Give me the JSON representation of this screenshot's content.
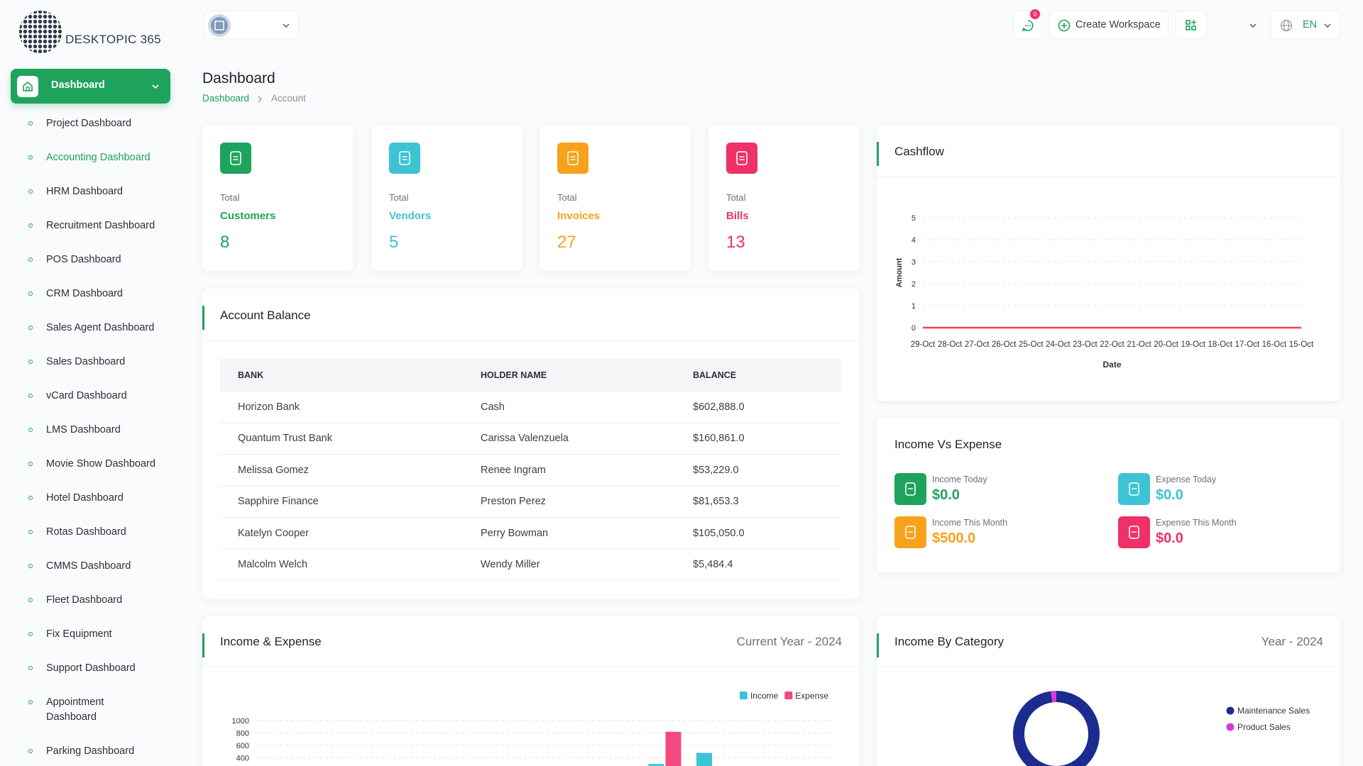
{
  "sidebar": {
    "logo": "DESKTOPIC 365",
    "active": "Dashboard",
    "items": [
      "Project Dashboard",
      "Accounting Dashboard",
      "HRM Dashboard",
      "Recruitment Dashboard",
      "POS Dashboard",
      "CRM Dashboard",
      "Sales Agent Dashboard",
      "Sales Dashboard",
      "vCard Dashboard",
      "LMS Dashboard",
      "Movie Show Dashboard",
      "Hotel Dashboard",
      "Rotas Dashboard",
      "CMMS Dashboard",
      "Fleet Dashboard",
      "Fix Equipment",
      "Support Dashboard",
      "Appointment Dashboard",
      "Parking Dashboard"
    ],
    "current_item": "Accounting Dashboard"
  },
  "header": {
    "notification_count": 0,
    "create_workspace": "Create Workspace",
    "language": "EN"
  },
  "page": {
    "title": "Dashboard",
    "breadcrumb": [
      "Dashboard",
      "Account"
    ]
  },
  "stats": [
    {
      "label": "Total",
      "name": "Customers",
      "value": 8,
      "color": "#1ea35c"
    },
    {
      "label": "Total",
      "name": "Vendors",
      "value": 5,
      "color": "#3ec3d5"
    },
    {
      "label": "Total",
      "name": "Invoices",
      "value": 27,
      "color": "#f7a21b"
    },
    {
      "label": "Total",
      "name": "Bills",
      "value": 13,
      "color": "#ef3167"
    }
  ],
  "account_balance": {
    "title": "Account Balance",
    "columns": [
      "BANK",
      "HOLDER NAME",
      "BALANCE"
    ],
    "rows": [
      [
        "Horizon Bank",
        "Cash",
        "$602,888.0"
      ],
      [
        "Quantum Trust Bank",
        "Carissa Valenzuela",
        "$160,861.0"
      ],
      [
        "Melissa Gomez",
        "Renee Ingram",
        "$53,229.0"
      ],
      [
        "Sapphire Finance",
        "Preston Perez",
        "$81,653.3"
      ],
      [
        "Katelyn Cooper",
        "Perry Bowman",
        "$105,050.0"
      ],
      [
        "Malcolm Welch",
        "Wendy Miller",
        "$5,484.4"
      ]
    ]
  },
  "income_vs_expense": {
    "title": "Income Vs Expense",
    "items": [
      {
        "label": "Income Today",
        "value": "$0.0",
        "color": "#1ea35c"
      },
      {
        "label": "Expense Today",
        "value": "$0.0",
        "color": "#3ec3d5"
      },
      {
        "label": "Income This Month",
        "value": "$500.0",
        "color": "#f7a21b"
      },
      {
        "label": "Expense This Month",
        "value": "$0.0",
        "color": "#ef3167"
      }
    ]
  },
  "chart_data": [
    {
      "type": "line",
      "title": "Cashflow",
      "x_label": "Date",
      "y_label": "Amount",
      "categories": [
        "29-Oct",
        "28-Oct",
        "27-Oct",
        "26-Oct",
        "25-Oct",
        "24-Oct",
        "23-Oct",
        "22-Oct",
        "21-Oct",
        "20-Oct",
        "19-Oct",
        "18-Oct",
        "17-Oct",
        "16-Oct",
        "15-Oct"
      ],
      "series": [
        {
          "color": "#ff3a5c",
          "values": [
            0,
            0,
            0,
            0,
            0,
            0,
            0,
            0,
            0,
            0,
            0,
            0,
            0,
            0,
            0
          ]
        }
      ],
      "ylim": [
        0,
        5
      ],
      "yticks": [
        0,
        1,
        2,
        3,
        4,
        5
      ],
      "grid": true
    },
    {
      "type": "bar",
      "title": "Income & Expense",
      "subtitle": "Current Year - 2024",
      "categories": [
        null,
        null,
        null,
        null,
        null,
        null,
        null,
        null,
        null,
        null,
        null,
        null
      ],
      "series": [
        {
          "name": "Income",
          "color": "#3ec3d5",
          "values": [
            0,
            0,
            0,
            0,
            0,
            0,
            0,
            0,
            300,
            480,
            0,
            0
          ]
        },
        {
          "name": "Expense",
          "color": "#f5487f",
          "values": [
            0,
            0,
            0,
            0,
            0,
            0,
            0,
            0,
            820,
            0,
            0,
            0
          ]
        }
      ],
      "ylim": [
        0,
        1000
      ],
      "yticks": [
        400,
        600,
        800,
        1000
      ],
      "grid": true,
      "legend": "top-right"
    },
    {
      "type": "donut",
      "title": "Income By Category",
      "subtitle": "Year - 2024",
      "categories": [
        "Maintenance Sales",
        "Product Sales"
      ],
      "values": [
        98,
        2
      ],
      "colors": [
        "#1c2b8f",
        "#d63bd1"
      ],
      "legend": "right"
    }
  ]
}
